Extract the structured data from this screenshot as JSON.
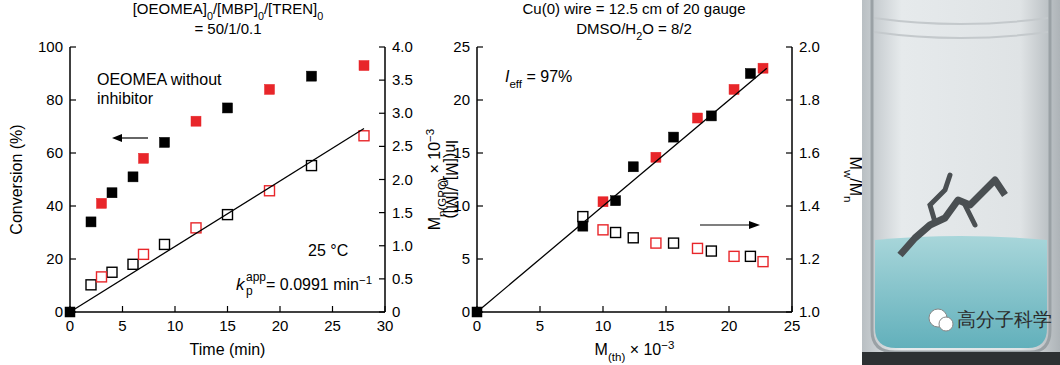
{
  "chart_data": [
    {
      "type": "scatter",
      "title": [
        [
          {
            "t": "[OEOMEA]"
          },
          {
            "t": "0",
            "sub": true
          },
          {
            "t": "/[MBP]"
          },
          {
            "t": "0",
            "sub": true
          },
          {
            "t": "/[TREN]"
          },
          {
            "t": "0",
            "sub": true
          }
        ],
        [
          {
            "t": "= 50/1/0.1"
          }
        ]
      ],
      "xlabel": [
        {
          "t": "Time (min)"
        }
      ],
      "ylabel": [
        {
          "t": "Conversion (%)"
        }
      ],
      "y2label": [
        {
          "t": "ln([M]"
        },
        {
          "t": "0",
          "sub": true
        },
        {
          "t": "/[M])"
        }
      ],
      "xlim": [
        0,
        30
      ],
      "xticks": [
        0,
        5,
        10,
        15,
        20,
        25,
        30
      ],
      "ylim": [
        0,
        100
      ],
      "yticks": [
        0,
        20,
        40,
        60,
        80,
        100
      ],
      "y2lim": [
        0,
        4
      ],
      "y2ticks": [
        0,
        0.5,
        {
          "value": 1,
          "label": "1.0"
        },
        1.5,
        {
          "value": 2,
          "label": "2.0"
        },
        2.5,
        {
          "value": 3,
          "label": "3.0"
        },
        3.5,
        {
          "value": 4,
          "label": "4.0"
        }
      ],
      "grid": false,
      "series": [
        {
          "color": "#000000",
          "marker": "square",
          "x": [
            0,
            2,
            4,
            6,
            9,
            15,
            23
          ],
          "values": [
            0,
            34,
            45,
            51,
            64,
            77,
            89
          ]
        },
        {
          "color": "#e8262a",
          "marker": "square",
          "x": [
            3,
            7,
            12,
            19,
            28
          ],
          "values": [
            41,
            58,
            72,
            84,
            93
          ]
        },
        {
          "color": "#000000",
          "marker": "square-open",
          "axis": "y2",
          "x": [
            2,
            4,
            6,
            9,
            15,
            23
          ],
          "values": [
            0.41,
            0.6,
            0.72,
            1.02,
            1.47,
            2.21
          ]
        },
        {
          "color": "#e8262a",
          "marker": "square-open",
          "axis": "y2",
          "x": [
            3,
            7,
            12,
            19,
            28
          ],
          "values": [
            0.53,
            0.87,
            1.27,
            1.83,
            2.66
          ]
        },
        {
          "color": "#000000",
          "type": "line",
          "line_style": "solid",
          "marker": "none",
          "axis": "y2",
          "x": [
            0,
            28
          ],
          "values": [
            0,
            2.77
          ]
        }
      ],
      "annotations": {
        "note": [
          "OEOMEA without",
          "inhibitor"
        ],
        "temperature": "25 °C",
        "rate": {
          "symbol": "k",
          "sub": "p",
          "sup": "app",
          "text": [
            {
              "t": " = 0.0991 min"
            },
            {
              "t": "−1",
              "sup": true
            }
          ]
        }
      }
    },
    {
      "type": "scatter",
      "title": [
        [
          {
            "t": "Cu(0) wire = 12.5 cm of 20 gauge"
          }
        ],
        [
          {
            "t": "DMSO/H"
          },
          {
            "t": "2",
            "sub": true
          },
          {
            "t": "O = 8/2"
          }
        ]
      ],
      "xlabel": [
        {
          "t": "M"
        },
        {
          "t": "(th)",
          "sub": true
        },
        {
          "t": " × 10"
        },
        {
          "t": "−3",
          "sup": true
        }
      ],
      "ylabel": [
        {
          "t": "M"
        },
        {
          "t": "n(GPC)",
          "sub": true
        },
        {
          "t": " × 10"
        },
        {
          "t": "−3",
          "sup": true
        }
      ],
      "y2label": [
        {
          "t": "M"
        },
        {
          "t": "w",
          "sub": true
        },
        {
          "t": "/M"
        },
        {
          "t": "n",
          "sub": true
        }
      ],
      "xlim": [
        0,
        25
      ],
      "xticks": [
        0,
        5,
        10,
        15,
        20,
        25
      ],
      "ylim": [
        0,
        25
      ],
      "yticks": [
        0,
        5,
        10,
        15,
        20,
        25
      ],
      "y2lim": [
        1,
        2
      ],
      "y2ticks": [
        {
          "value": 1,
          "label": "1.0"
        },
        1.2,
        1.4,
        1.6,
        1.8,
        {
          "value": 2,
          "label": "2.0"
        }
      ],
      "grid": false,
      "series": [
        {
          "color": "#000000",
          "marker": "square",
          "x": [
            0,
            8.4,
            11,
            12.4,
            15.6,
            18.6,
            21.7
          ],
          "values": [
            0,
            8.1,
            10.5,
            13.7,
            16.5,
            18.5,
            22.5
          ]
        },
        {
          "color": "#e8262a",
          "marker": "square",
          "x": [
            10,
            14.2,
            17.5,
            20.4,
            22.7
          ],
          "values": [
            10.4,
            14.6,
            18.3,
            21,
            23
          ]
        },
        {
          "color": "#000000",
          "marker": "square-open",
          "axis": "y2",
          "x": [
            8.4,
            11,
            12.4,
            15.6,
            18.6,
            21.7
          ],
          "values": [
            1.36,
            1.3,
            1.28,
            1.26,
            1.23,
            1.21
          ]
        },
        {
          "color": "#e8262a",
          "marker": "square-open",
          "axis": "y2",
          "x": [
            10,
            14.2,
            17.5,
            20.4,
            22.7
          ],
          "values": [
            1.31,
            1.26,
            1.24,
            1.21,
            1.19
          ]
        },
        {
          "color": "#000000",
          "type": "line",
          "line_style": "solid",
          "marker": "none",
          "x": [
            0,
            23
          ],
          "values": [
            0,
            23
          ]
        }
      ],
      "annotations": {
        "efficiency": [
          {
            "t": "I"
          },
          {
            "t": "eff",
            "sub": true
          },
          {
            "t": " = 97%"
          }
        ]
      }
    }
  ],
  "photo": {
    "watermark": "高分子科学"
  }
}
